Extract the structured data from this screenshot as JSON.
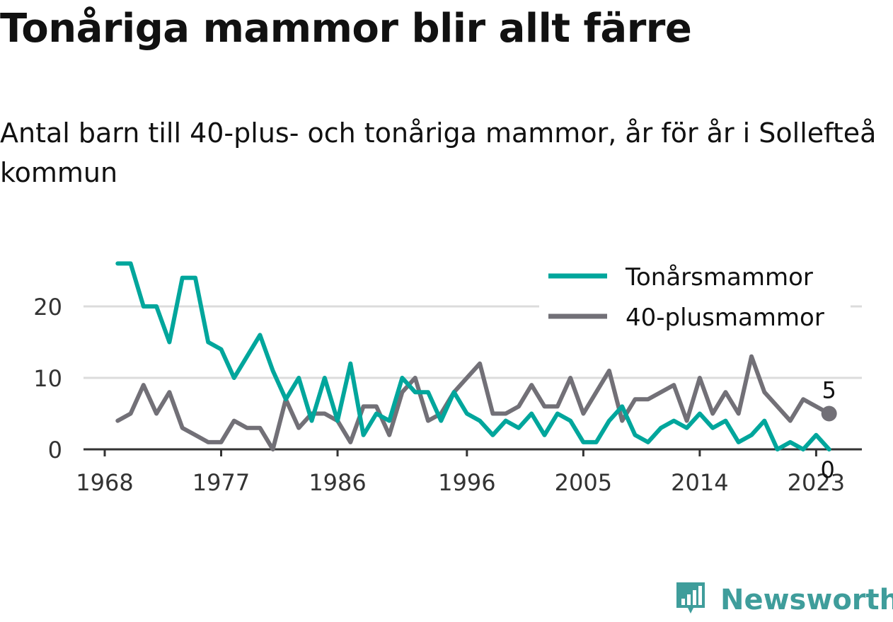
{
  "header": {
    "title": "Tonåriga mammor blir allt färre",
    "subtitle": "Antal barn till 40-plus- och tonåriga mammor, år för år i Sollefteå kommun"
  },
  "brand": {
    "name": "Newsworthy",
    "icon": "newsworthy-logo-icon",
    "color": "#3f9d9b"
  },
  "chart_data": {
    "type": "line",
    "x": [
      1969,
      1970,
      1971,
      1972,
      1973,
      1974,
      1975,
      1976,
      1977,
      1978,
      1979,
      1980,
      1981,
      1982,
      1983,
      1984,
      1985,
      1986,
      1987,
      1988,
      1989,
      1990,
      1991,
      1992,
      1993,
      1994,
      1995,
      1996,
      1997,
      1998,
      1999,
      2000,
      2001,
      2002,
      2003,
      2004,
      2005,
      2006,
      2007,
      2008,
      2009,
      2010,
      2011,
      2012,
      2013,
      2014,
      2015,
      2016,
      2017,
      2018,
      2019,
      2020,
      2021,
      2022,
      2023,
      2024
    ],
    "x_ticks": [
      "1968",
      "1977",
      "1986",
      "1996",
      "2005",
      "2014",
      "2023"
    ],
    "y_ticks": [
      "0",
      "10",
      "20"
    ],
    "ylim": [
      0,
      26
    ],
    "grid": true,
    "legend_position": "top-right",
    "series": [
      {
        "name": "Tonårsmammor",
        "color": "#00a69c",
        "values": [
          26,
          26,
          20,
          20,
          15,
          24,
          24,
          15,
          14,
          10,
          13,
          16,
          11,
          7,
          10,
          4,
          10,
          4,
          12,
          2,
          5,
          4,
          10,
          8,
          8,
          4,
          8,
          5,
          4,
          2,
          4,
          3,
          5,
          2,
          5,
          4,
          1,
          1,
          4,
          6,
          2,
          1,
          3,
          4,
          3,
          5,
          3,
          4,
          1,
          2,
          4,
          0,
          1,
          0,
          2,
          0
        ],
        "end_label": "0"
      },
      {
        "name": "40-plusmammor",
        "color": "#727077",
        "values": [
          4,
          5,
          9,
          5,
          8,
          3,
          2,
          1,
          1,
          4,
          3,
          3,
          0,
          7,
          3,
          5,
          5,
          4,
          1,
          6,
          6,
          2,
          8,
          10,
          4,
          5,
          8,
          10,
          12,
          5,
          5,
          6,
          9,
          6,
          6,
          10,
          5,
          8,
          11,
          4,
          7,
          7,
          8,
          9,
          4,
          10,
          5,
          8,
          5,
          13,
          8,
          6,
          4,
          7,
          6,
          5
        ],
        "end_label": "5"
      }
    ]
  }
}
